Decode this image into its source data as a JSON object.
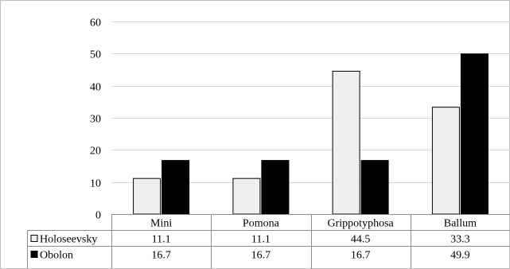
{
  "chart_data": {
    "type": "bar",
    "categories": [
      "Mini",
      "Pomona",
      "Grippotyphosa",
      "Ballum"
    ],
    "series": [
      {
        "name": "Holoseevsky",
        "values": [
          11.1,
          11.1,
          44.5,
          33.3
        ],
        "color": "#efefef"
      },
      {
        "name": "Obolon",
        "values": [
          16.7,
          16.7,
          16.7,
          49.9
        ],
        "color": "#000000"
      }
    ],
    "ylim": [
      0,
      60
    ],
    "yticks": [
      0,
      10,
      20,
      30,
      40,
      50,
      60
    ],
    "ytick_labels": [
      "0",
      "10",
      "20",
      "30",
      "40",
      "50",
      "60"
    ],
    "table_values": [
      [
        "11.1",
        "11.1",
        "44.5",
        "33.3"
      ],
      [
        "16.7",
        "16.7",
        "16.7",
        "49.9"
      ]
    ],
    "grid": true,
    "legend": "data-table"
  }
}
